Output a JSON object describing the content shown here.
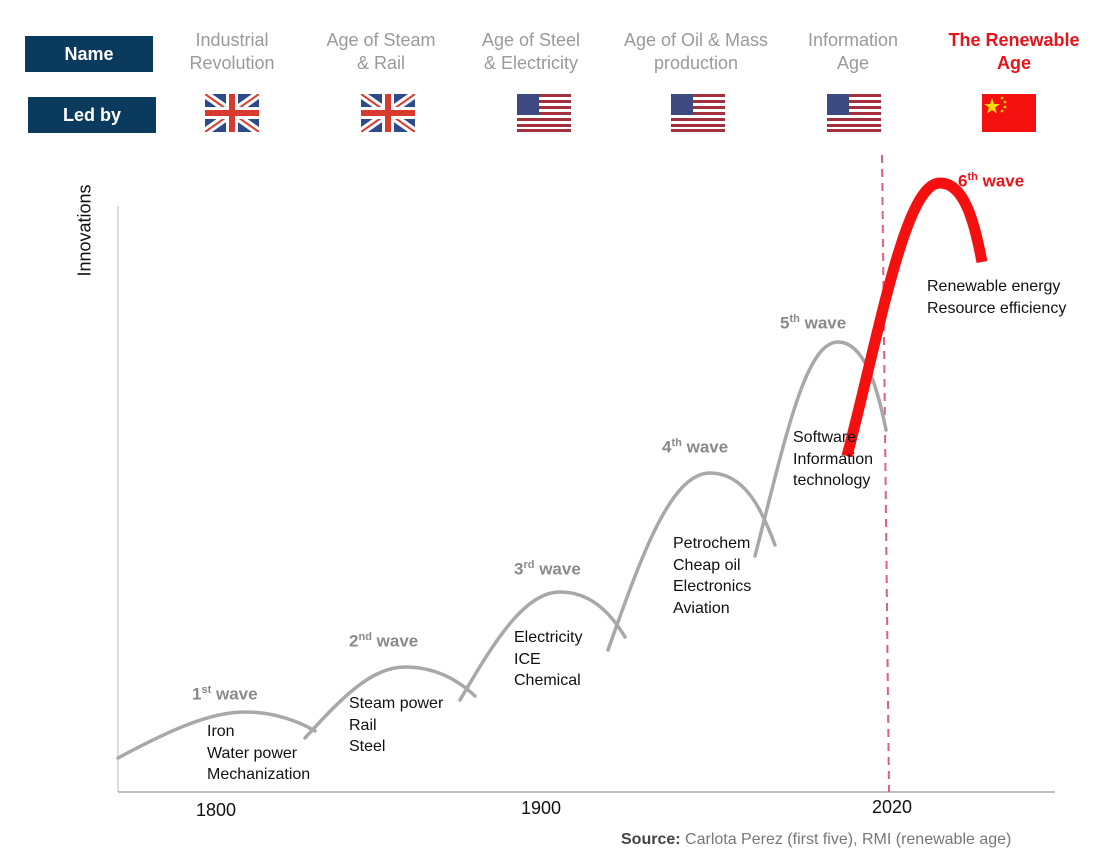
{
  "header": {
    "name_label": "Name",
    "led_by_label": "Led by",
    "ages": [
      {
        "name": "Industrial Revolution",
        "line1": "Industrial",
        "line2": "Revolution",
        "leader_flag": "uk-flag-icon"
      },
      {
        "name": "Age of Steam & Rail",
        "line1": "Age of Steam",
        "line2": "& Rail",
        "leader_flag": "uk-flag-icon"
      },
      {
        "name": "Age of Steel & Electricity",
        "line1": "Age of Steel",
        "line2": "& Electricity",
        "leader_flag": "us-flag-icon"
      },
      {
        "name": "Age of Oil & Mass production",
        "line1": "Age of Oil & Mass",
        "line2": "production",
        "leader_flag": "us-flag-icon"
      },
      {
        "name": "Information Age",
        "line1": "Information",
        "line2": "Age",
        "leader_flag": "us-flag-icon"
      },
      {
        "name": "The Renewable Age",
        "line1": "The Renewable",
        "line2": "Age",
        "leader_flag": "china-flag-icon"
      }
    ]
  },
  "axis": {
    "ylabel": "Innovations",
    "xticks": [
      "1800",
      "1900",
      "2020"
    ]
  },
  "waves": [
    {
      "num": "1",
      "sup": "st",
      "word": "wave",
      "labels": [
        "Iron",
        "Water power",
        "Mechanization"
      ]
    },
    {
      "num": "2",
      "sup": "nd",
      "word": "wave",
      "labels": [
        "Steam power",
        "Rail",
        "Steel"
      ]
    },
    {
      "num": "3",
      "sup": "rd",
      "word": "wave",
      "labels": [
        "Electricity",
        "ICE",
        "Chemical"
      ]
    },
    {
      "num": "4",
      "sup": "th",
      "word": "wave",
      "labels": [
        "Petrochem",
        "Cheap oil",
        "Electronics",
        "Aviation"
      ]
    },
    {
      "num": "5",
      "sup": "th",
      "word": "wave",
      "labels": [
        "Software",
        "Information",
        "technology"
      ]
    },
    {
      "num": "6",
      "sup": "th",
      "word": "wave",
      "labels": [
        "Renewable energy",
        "Resource efficiency"
      ]
    }
  ],
  "source": {
    "label": "Source:",
    "text": "Carlota  Perez (first five), RMI (renewable age)"
  },
  "colors": {
    "header_box": "#0b3a5f",
    "accent_red": "#e8141c",
    "wave_gray": "#a8a8a8",
    "dashed_line": "#e0607a"
  }
}
